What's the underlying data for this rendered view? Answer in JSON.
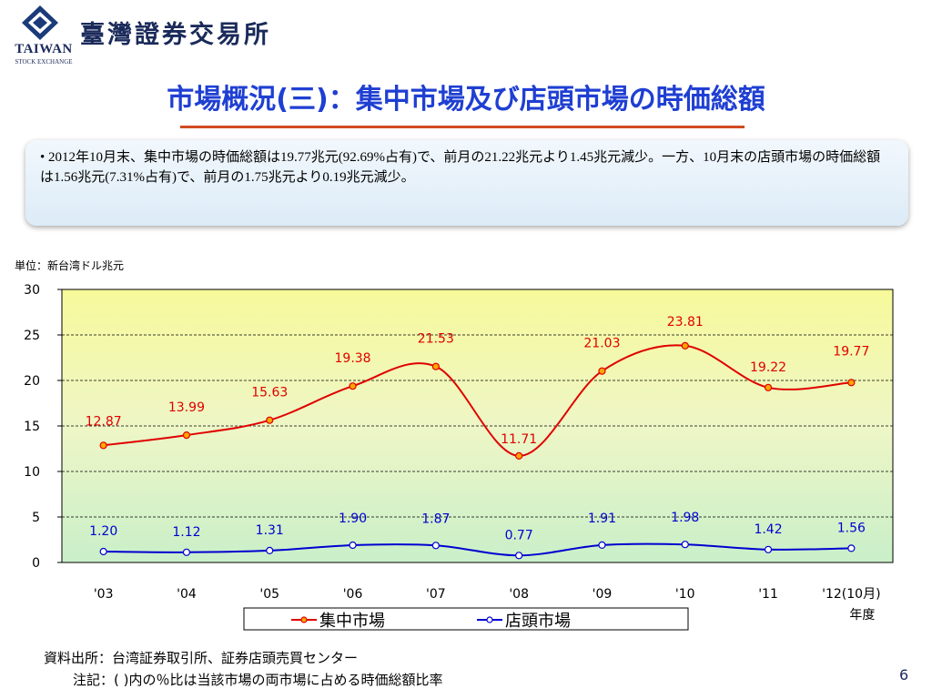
{
  "header": {
    "logo_text": "TAIWAN",
    "logo_subtext": "STOCK EXCHANGE",
    "org_name": "臺灣證券交易所"
  },
  "title": "市場概況(三)：集中市場及び店頭市場の時価総額",
  "summary": "• 2012年10月末、集中市場の時価総額は19.77兆元(92.69%占有)で、前月の21.22兆元より1.45兆元減少。一方、10月末の店頭市場の時価総額は1.56兆元(7.31%占有)で、前月の1.75兆元より0.19兆元減少。",
  "unit_label": "単位：新台湾ドル兆元",
  "colors": {
    "title": "#1f3fd2",
    "series_red": "#e00000",
    "series_blue": "#0000d0",
    "rule": "#d04a1f"
  },
  "chart_data": {
    "type": "line",
    "categories": [
      "'03",
      "'04",
      "'05",
      "'06",
      "'07",
      "'08",
      "'09",
      "'10",
      "'11",
      "'12(10月)"
    ],
    "xlabel": "年度",
    "ylim": [
      0,
      30
    ],
    "yticks": [
      0,
      5,
      10,
      15,
      20,
      25,
      30
    ],
    "grid": "dashed horizontal",
    "legend_position": "bottom",
    "series": [
      {
        "name": "集中市場",
        "color": "#e00000",
        "values": [
          12.87,
          13.99,
          15.63,
          19.38,
          21.53,
          11.71,
          21.03,
          23.81,
          19.22,
          19.77
        ]
      },
      {
        "name": "店頭市場",
        "color": "#0000d0",
        "values": [
          1.2,
          1.12,
          1.31,
          1.9,
          1.87,
          0.77,
          1.91,
          1.98,
          1.42,
          1.56
        ]
      }
    ]
  },
  "footer": {
    "source": "資料出所：台湾証券取引所、証券店頭売買センター",
    "note": "注記：( )内の％比は当該市場の両市場に占める時価総額比率"
  },
  "page_number": "6"
}
